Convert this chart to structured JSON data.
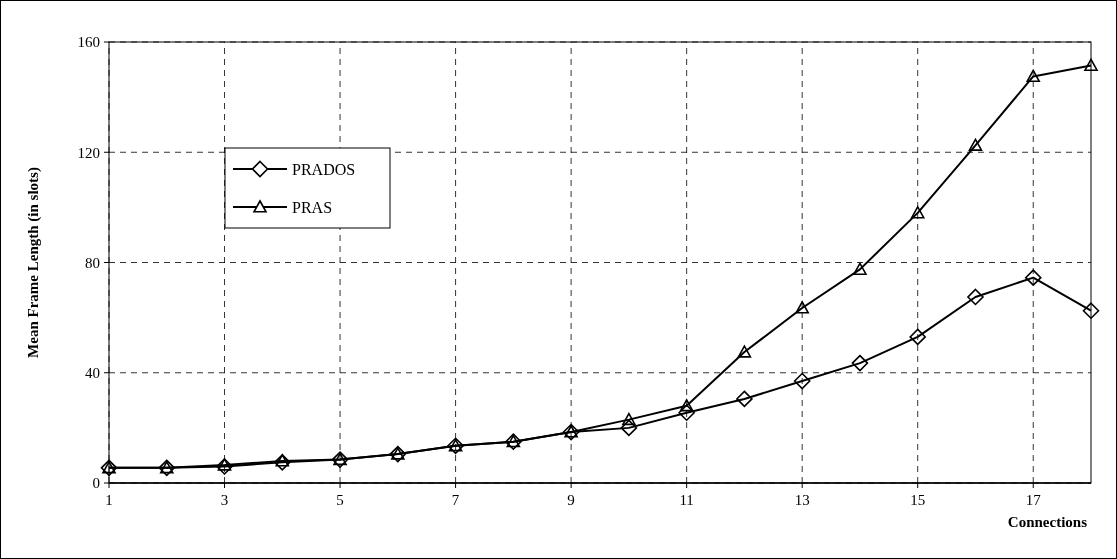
{
  "chart_data": {
    "type": "line",
    "xlabel": "Connections",
    "ylabel": "Mean Frame Length (in slots)",
    "x": [
      1,
      2,
      3,
      4,
      5,
      6,
      7,
      8,
      9,
      10,
      11,
      12,
      13,
      14,
      15,
      16,
      17,
      18
    ],
    "xlim": [
      1,
      18
    ],
    "xticks": [
      1,
      3,
      5,
      7,
      9,
      11,
      13,
      15,
      17
    ],
    "ylim": [
      0,
      160
    ],
    "yticks": [
      0,
      40,
      80,
      120,
      160
    ],
    "grid": true,
    "legend": "top left",
    "line_style": "solid",
    "series": [
      {
        "name": "PRADOS",
        "color": "#000000",
        "marker": "diamond",
        "values": [
          5.5,
          5.5,
          6,
          7.5,
          8.5,
          10.5,
          13.5,
          15,
          18.5,
          20,
          25.5,
          30.5,
          37,
          43.5,
          53,
          67.5,
          74.5,
          62.5
        ]
      },
      {
        "name": "PRAS",
        "color": "#000000",
        "marker": "triangle",
        "values": [
          5.5,
          5.5,
          6.5,
          8,
          8.5,
          10.5,
          13.5,
          15,
          18.5,
          23,
          28,
          47.5,
          63.5,
          77.5,
          98,
          122.5,
          147.5,
          151.5
        ]
      }
    ]
  }
}
